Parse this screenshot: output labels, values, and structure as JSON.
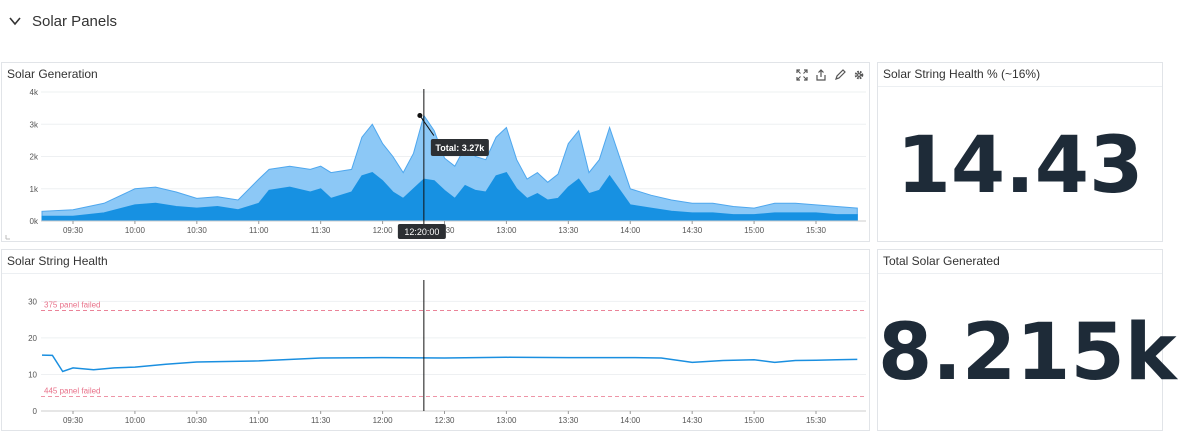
{
  "section": {
    "title": "Solar Panels"
  },
  "generation_panel": {
    "title": "Solar Generation",
    "tooltip": "Total: 3.27k",
    "crosshair_time": "12:20:00"
  },
  "health_pct_panel": {
    "title": "Solar String Health % (~16%)",
    "value": "14.43"
  },
  "string_health_panel": {
    "title": "Solar String Health",
    "markers": [
      "375 panel failed",
      "445 panel failed"
    ]
  },
  "total_panel": {
    "title": "Total Solar Generated",
    "value": "8.215k"
  },
  "colors": {
    "light_area": "#8cc8f6",
    "dark_area": "#1791e2",
    "line": "#1a8fe0",
    "marker": "#e8728a"
  },
  "chart_data": [
    {
      "type": "area",
      "title": "Solar Generation",
      "x_ticks": [
        "09:30",
        "10:00",
        "10:30",
        "11:00",
        "11:30",
        "12:00",
        "12:30",
        "13:00",
        "13:30",
        "14:00",
        "14:30",
        "15:00",
        "15:30"
      ],
      "y_ticks": [
        "0k",
        "1k",
        "2k",
        "3k",
        "4k"
      ],
      "ylim": [
        0,
        4000
      ],
      "x": [
        "09:15",
        "09:30",
        "09:45",
        "10:00",
        "10:10",
        "10:20",
        "10:30",
        "10:40",
        "10:50",
        "11:00",
        "11:05",
        "11:15",
        "11:25",
        "11:30",
        "11:35",
        "11:45",
        "11:50",
        "11:55",
        "12:00",
        "12:05",
        "12:10",
        "12:15",
        "12:20",
        "12:25",
        "12:30",
        "12:35",
        "12:40",
        "12:45",
        "12:50",
        "12:55",
        "13:00",
        "13:05",
        "13:10",
        "13:15",
        "13:20",
        "13:25",
        "13:30",
        "13:35",
        "13:40",
        "13:45",
        "13:50",
        "14:00",
        "14:10",
        "14:20",
        "14:30",
        "14:40",
        "14:50",
        "15:00",
        "15:10",
        "15:20",
        "15:30",
        "15:40",
        "15:50"
      ],
      "series": [
        {
          "values": [
            300,
            350,
            550,
            1000,
            1050,
            900,
            700,
            750,
            650,
            1300,
            1600,
            1700,
            1600,
            1700,
            1500,
            1600,
            2600,
            3000,
            2400,
            2000,
            1500,
            2100,
            3270,
            2800,
            1950,
            1700,
            2300,
            2000,
            1900,
            2600,
            2900,
            1900,
            1300,
            1500,
            1200,
            1450,
            2400,
            2800,
            1500,
            1900,
            2900,
            1000,
            800,
            650,
            550,
            550,
            450,
            400,
            550,
            550,
            500,
            450,
            400
          ]
        },
        {
          "values": [
            150,
            150,
            250,
            500,
            550,
            450,
            400,
            450,
            350,
            550,
            950,
            1050,
            900,
            1000,
            700,
            900,
            1400,
            1500,
            1250,
            900,
            700,
            1000,
            1300,
            1250,
            950,
            700,
            1100,
            950,
            900,
            1400,
            1500,
            1000,
            700,
            850,
            650,
            700,
            1050,
            1300,
            850,
            950,
            1400,
            500,
            400,
            300,
            250,
            250,
            200,
            200,
            250,
            250,
            250,
            200,
            200
          ]
        }
      ]
    },
    {
      "type": "line",
      "title": "Solar String Health",
      "x_ticks": [
        "09:30",
        "10:00",
        "10:30",
        "11:00",
        "11:30",
        "12:00",
        "12:30",
        "13:00",
        "13:30",
        "14:00",
        "14:30",
        "15:00",
        "15:30"
      ],
      "y_ticks": [
        "0",
        "10",
        "20",
        "30"
      ],
      "ylim": [
        0,
        32
      ],
      "x": [
        "09:15",
        "09:20",
        "09:25",
        "09:30",
        "09:40",
        "09:50",
        "10:00",
        "10:15",
        "10:30",
        "11:00",
        "11:30",
        "12:00",
        "12:30",
        "13:00",
        "13:30",
        "14:00",
        "14:15",
        "14:30",
        "14:45",
        "15:00",
        "15:10",
        "15:20",
        "15:30",
        "15:40",
        "15:50"
      ],
      "series": [
        {
          "values": [
            15.3,
            15.2,
            10.8,
            11.8,
            11.3,
            11.8,
            12.0,
            12.8,
            13.4,
            13.7,
            14.5,
            14.6,
            14.5,
            14.7,
            14.6,
            14.6,
            14.5,
            13.3,
            13.8,
            14.0,
            13.3,
            13.8,
            13.9,
            14.0,
            14.1
          ]
        }
      ],
      "reference_lines": [
        {
          "label": "375 panel failed",
          "y": 27.5
        },
        {
          "label": "445 panel failed",
          "y": 4.0
        }
      ]
    }
  ]
}
